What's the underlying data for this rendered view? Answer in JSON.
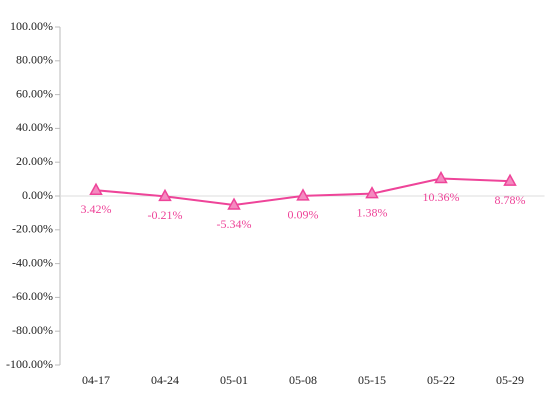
{
  "chart_data": {
    "type": "line",
    "categories": [
      "04-17",
      "04-24",
      "05-01",
      "05-08",
      "05-15",
      "05-22",
      "05-29"
    ],
    "series": [
      {
        "color": "#ee4499",
        "values": [
          3.42,
          -0.21,
          -5.34,
          0.09,
          1.38,
          10.36,
          8.78
        ],
        "value_labels": [
          "3.42%",
          "-0.21%",
          "-5.34%",
          "0.09%",
          "1.38%",
          "10.36%",
          "8.78%"
        ]
      }
    ],
    "ylim": [
      -100,
      100
    ],
    "yticks": [
      {
        "value": -100,
        "label": "-100.00%"
      },
      {
        "value": -80,
        "label": "-80.00%"
      },
      {
        "value": -60,
        "label": "-60.00%"
      },
      {
        "value": -40,
        "label": "-40.00%"
      },
      {
        "value": -20,
        "label": "-20.00%"
      },
      {
        "value": 0,
        "label": "0.00%"
      },
      {
        "value": 20,
        "label": "20.00%"
      },
      {
        "value": 40,
        "label": "40.00%"
      },
      {
        "value": 60,
        "label": "60.00%"
      },
      {
        "value": 80,
        "label": "80.00%"
      },
      {
        "value": 100,
        "label": "100.00%"
      }
    ],
    "grid": false
  }
}
